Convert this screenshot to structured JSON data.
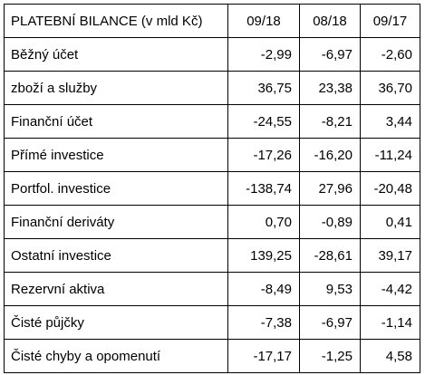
{
  "table": {
    "header": {
      "title": "PLATEBNÍ BILANCE (v mld Kč)",
      "columns": [
        "09/18",
        "08/18",
        "09/17"
      ]
    },
    "rows": [
      {
        "label": "Běžný účet",
        "values": [
          "-2,99",
          "-6,97",
          "-2,60"
        ]
      },
      {
        "label": "zboží a služby",
        "values": [
          "36,75",
          "23,38",
          "36,70"
        ]
      },
      {
        "label": "Finanční účet",
        "values": [
          "-24,55",
          "-8,21",
          "3,44"
        ]
      },
      {
        "label": "Přímé investice",
        "values": [
          "-17,26",
          "-16,20",
          "-11,24"
        ]
      },
      {
        "label": "Portfol. investice",
        "values": [
          "-138,74",
          "27,96",
          "-20,48"
        ]
      },
      {
        "label": "Finanční deriváty",
        "values": [
          "0,70",
          "-0,89",
          "0,41"
        ]
      },
      {
        "label": "Ostatní investice",
        "values": [
          "139,25",
          "-28,61",
          "39,17"
        ]
      },
      {
        "label": "Rezervní aktiva",
        "values": [
          "-8,49",
          "9,53",
          "-4,42"
        ]
      },
      {
        "label": "Čisté půjčky",
        "values": [
          "-7,38",
          "-6,97",
          "-1,14"
        ]
      },
      {
        "label": "Čisté chyby a opomenutí",
        "values": [
          "-17,17",
          "-1,25",
          "4,58"
        ]
      }
    ]
  }
}
